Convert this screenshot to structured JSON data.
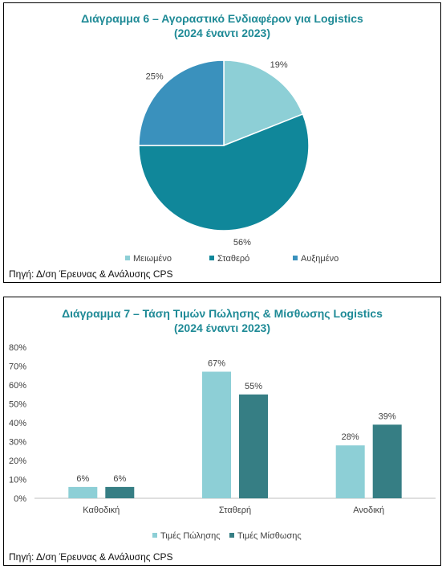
{
  "colors": {
    "title": "#1e8a96",
    "light": "#8dcfd6",
    "teal": "#10879a",
    "blue": "#3a91bd",
    "dark_teal": "#367e84"
  },
  "source_text": "Πηγή: Δ/ση Έρευνας & Ανάλυσης CPS",
  "chart_data": [
    {
      "type": "pie",
      "title": "Διάγραμμα 6 – Αγοραστικό Ενδιαφέρον για Logistics",
      "subtitle": "(2024 έναντι 2023)",
      "slices": [
        {
          "label": "Μειωμένο",
          "value": 19,
          "value_label": "19%",
          "color": "#8dcfd6"
        },
        {
          "label": "Σταθερό",
          "value": 56,
          "value_label": "56%",
          "color": "#10879a"
        },
        {
          "label": "Αυξημένο",
          "value": 25,
          "value_label": "25%",
          "color": "#3a91bd"
        }
      ],
      "legend_position": "bottom"
    },
    {
      "type": "bar",
      "title": "Διάγραμμα 7 – Τάση Τιμών Πώλησης & Μίσθωσης Logistics",
      "subtitle": "(2024 έναντι 2023)",
      "categories": [
        "Καθοδική",
        "Σταθερή",
        "Ανοδική"
      ],
      "series": [
        {
          "name": "Τιμές Πώλησης",
          "values": [
            6,
            67,
            28
          ],
          "labels": [
            "6%",
            "67%",
            "28%"
          ],
          "color": "#8dcfd6"
        },
        {
          "name": "Τιμές Μίσθωσης",
          "values": [
            6,
            55,
            39
          ],
          "labels": [
            "6%",
            "55%",
            "39%"
          ],
          "color": "#367e84"
        }
      ],
      "ylim": [
        0,
        80
      ],
      "yticks": [
        "0%",
        "10%",
        "20%",
        "30%",
        "40%",
        "50%",
        "60%",
        "70%",
        "80%"
      ],
      "grid": false,
      "legend_position": "bottom"
    }
  ]
}
